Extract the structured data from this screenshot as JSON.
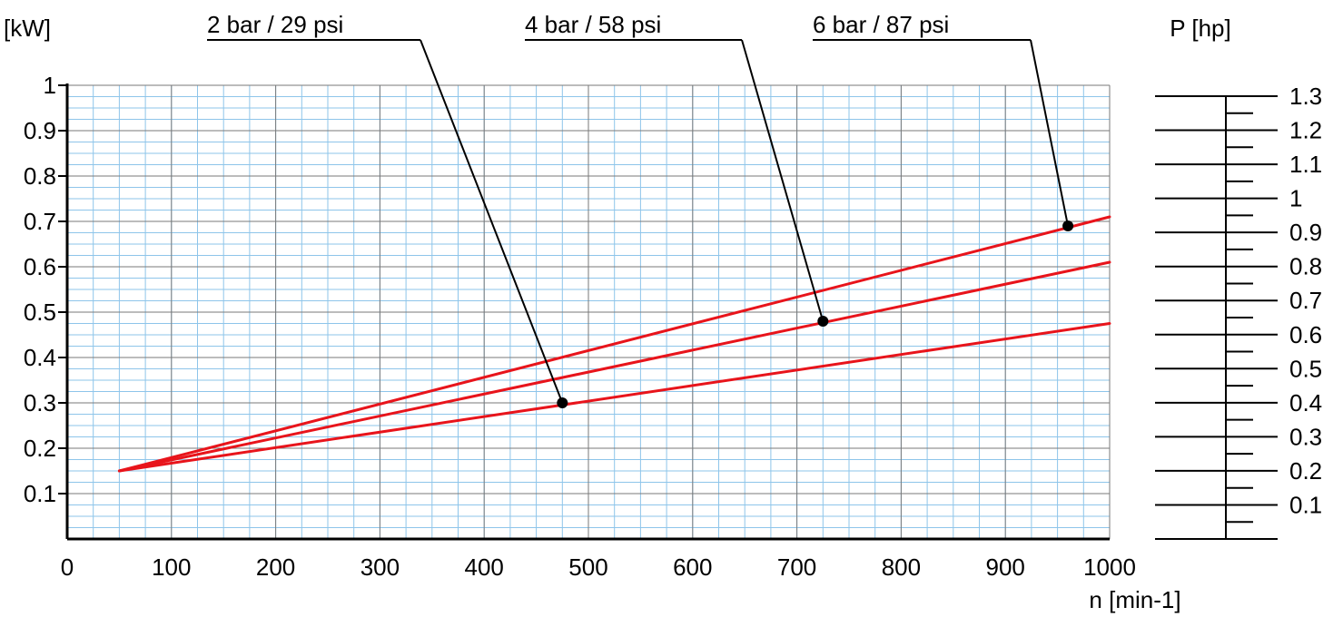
{
  "chart_data": {
    "type": "line",
    "title": "",
    "xlabel": "n [min-1]",
    "ylabel": "[kW]",
    "y2label": "P [hp]",
    "xlim": [
      0,
      1000
    ],
    "ylim": [
      0,
      1
    ],
    "x_ticks": [
      "0",
      "100",
      "200",
      "300",
      "400",
      "500",
      "600",
      "700",
      "800",
      "900",
      "1000"
    ],
    "y_ticks": [
      "0.1",
      "0.2",
      "0.3",
      "0.4",
      "0.5",
      "0.6",
      "0.7",
      "0.8",
      "0.9",
      "1"
    ],
    "y2_ticks": [
      "0.1",
      "0.2",
      "0.3",
      "0.4",
      "0.5",
      "0.6",
      "0.7",
      "0.8",
      "0.9",
      "1",
      "1.1",
      "1.2",
      "1.3"
    ],
    "grid": true,
    "series": [
      {
        "name": "2 bar / 29 psi",
        "x": [
          50,
          1000
        ],
        "y": [
          0.15,
          0.475
        ],
        "marker": [
          475,
          0.3
        ]
      },
      {
        "name": "4 bar / 58 psi",
        "x": [
          50,
          1000
        ],
        "y": [
          0.15,
          0.61
        ],
        "marker": [
          725,
          0.48
        ]
      },
      {
        "name": "6 bar / 87 psi",
        "x": [
          50,
          1000
        ],
        "y": [
          0.15,
          0.71
        ],
        "marker": [
          960,
          0.69
        ]
      }
    ],
    "colors": {
      "line": "#e8141b",
      "grid_minor": "#8ec5ea",
      "grid_major": "#7a7a7a",
      "axis": "#000000"
    }
  }
}
